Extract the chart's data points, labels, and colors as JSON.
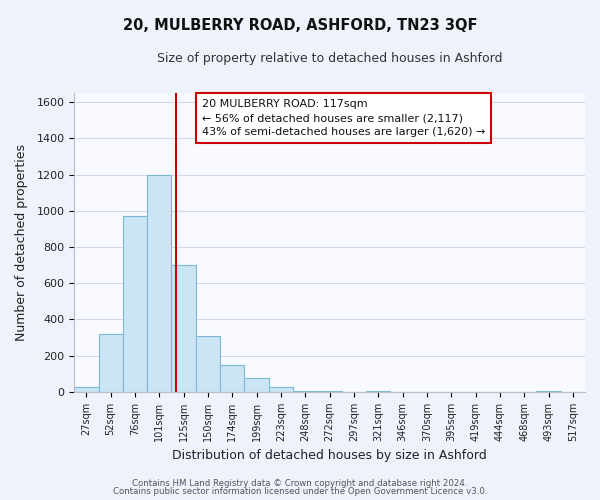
{
  "title": "20, MULBERRY ROAD, ASHFORD, TN23 3QF",
  "subtitle": "Size of property relative to detached houses in Ashford",
  "xlabel": "Distribution of detached houses by size in Ashford",
  "ylabel": "Number of detached properties",
  "bar_labels": [
    "27sqm",
    "52sqm",
    "76sqm",
    "101sqm",
    "125sqm",
    "150sqm",
    "174sqm",
    "199sqm",
    "223sqm",
    "248sqm",
    "272sqm",
    "297sqm",
    "321sqm",
    "346sqm",
    "370sqm",
    "395sqm",
    "419sqm",
    "444sqm",
    "468sqm",
    "493sqm",
    "517sqm"
  ],
  "bar_values": [
    30,
    320,
    970,
    1195,
    700,
    310,
    150,
    75,
    30,
    5,
    5,
    0,
    5,
    0,
    0,
    0,
    0,
    0,
    0,
    5,
    0
  ],
  "bar_color": "#cce5f5",
  "bar_edge_color": "#7ab8d4",
  "vline_color": "#cc0000",
  "vline_x": 3.68,
  "ylim": [
    0,
    1650
  ],
  "yticks": [
    0,
    200,
    400,
    600,
    800,
    1000,
    1200,
    1400,
    1600
  ],
  "annotation_text": "20 MULBERRY ROAD: 117sqm\n← 56% of detached houses are smaller (2,117)\n43% of semi-detached houses are larger (1,620) →",
  "annotation_box_color": "#ffffff",
  "annotation_box_edge": "#cc0000",
  "footer_line1": "Contains HM Land Registry data © Crown copyright and database right 2024.",
  "footer_line2": "Contains public sector information licensed under the Open Government Licence v3.0.",
  "background_color": "#eef2fb",
  "plot_background": "#f8faff",
  "grid_color": "#d0d8ea"
}
